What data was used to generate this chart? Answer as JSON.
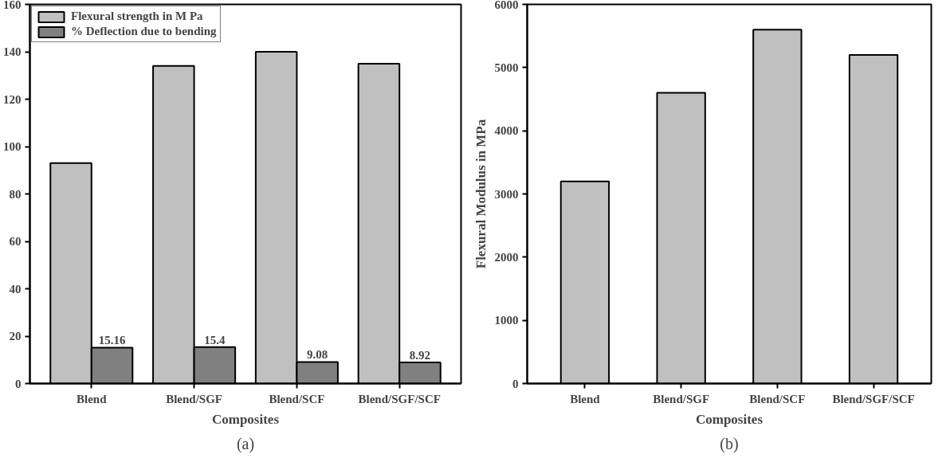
{
  "chart_data": [
    {
      "type": "bar",
      "title": "(a)",
      "xlabel": "Composites",
      "categories": [
        "Blend",
        "Blend/SGF",
        "Blend/SCF",
        "Blend/SGF/SCF"
      ],
      "series": [
        {
          "name": "Flexural strength in M Pa",
          "color": "#c0c0c0",
          "values": [
            93,
            134,
            140,
            135
          ]
        },
        {
          "name": "% Deflection due to bending",
          "color": "#808080",
          "values": [
            15.16,
            15.4,
            9.08,
            8.92
          ],
          "value_labels": [
            "15.16",
            "15.4",
            "9.08",
            "8.92"
          ]
        }
      ],
      "ylim": [
        0,
        160
      ],
      "yticks": [
        0,
        20,
        40,
        60,
        80,
        100,
        120,
        140,
        160
      ],
      "legend": "top left",
      "grid": false
    },
    {
      "type": "bar",
      "title": "(b)",
      "xlabel": "Composites",
      "ylabel": "Flexural Modulus in MPa",
      "categories": [
        "Blend",
        "Blend/SGF",
        "Blend/SCF",
        "Blend/SGF/SCF"
      ],
      "series": [
        {
          "color": "#c0c0c0",
          "values": [
            3200,
            4600,
            5600,
            5200
          ]
        }
      ],
      "ylim": [
        0,
        6000
      ],
      "yticks": [
        0,
        1000,
        2000,
        3000,
        4000,
        5000,
        6000
      ],
      "legend": false,
      "grid": false
    }
  ]
}
